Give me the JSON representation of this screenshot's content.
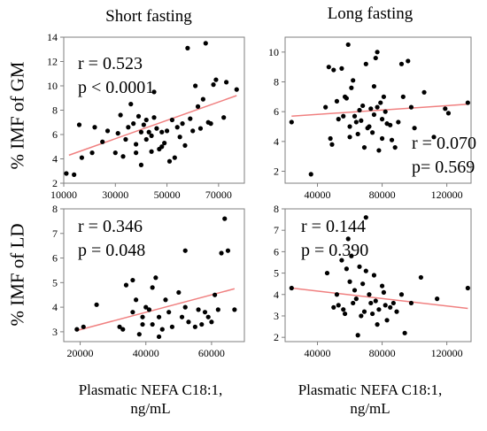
{
  "columns": [
    {
      "title": "Short fasting"
    },
    {
      "title": "Long fasting"
    }
  ],
  "rows": [
    {
      "label": "% IMF of  GM"
    },
    {
      "label": "% IMF of  LD"
    }
  ],
  "x_titles": [
    {
      "line1": "Plasmatic NEFA C18:1,",
      "line2": "ng/mL"
    },
    {
      "line1": "Plasmatic NEFA C18:1,",
      "line2": "ng/mL"
    }
  ],
  "colors": {
    "points": "#000000",
    "fit_line": "#f08080",
    "frame": "#7f7f7f"
  },
  "chart_data": [
    {
      "type": "scatter",
      "id": "gm-short",
      "xlim": [
        10000,
        80000
      ],
      "ylim": [
        2,
        14
      ],
      "xticks": [
        10000,
        30000,
        50000,
        70000
      ],
      "xtick_labels": [
        "10000",
        "30000",
        "50000",
        "70000"
      ],
      "yticks": [
        2,
        4,
        6,
        8,
        10,
        12,
        14
      ],
      "ytick_labels": [
        "2",
        "4",
        "6",
        "8",
        "10",
        "12",
        "14"
      ],
      "stats": {
        "r": "r = 0.523",
        "p": "p < 0.0001"
      },
      "fit": {
        "x": [
          12000,
          77000
        ],
        "y": [
          4.3,
          9.2
        ]
      },
      "points": [
        [
          11000,
          2.8
        ],
        [
          14000,
          2.7
        ],
        [
          17000,
          4.1
        ],
        [
          16000,
          6.8
        ],
        [
          22000,
          6.6
        ],
        [
          21000,
          4.5
        ],
        [
          25000,
          5.4
        ],
        [
          27000,
          6.3
        ],
        [
          30000,
          4.5
        ],
        [
          31000,
          6.1
        ],
        [
          32000,
          7.6
        ],
        [
          33000,
          4.2
        ],
        [
          34000,
          5.6
        ],
        [
          35000,
          6.6
        ],
        [
          36000,
          8.5
        ],
        [
          37000,
          6.9
        ],
        [
          38000,
          5.2
        ],
        [
          38000,
          4.5
        ],
        [
          39000,
          7.5
        ],
        [
          40000,
          6.2
        ],
        [
          40000,
          3.5
        ],
        [
          41000,
          6.8
        ],
        [
          42000,
          5.6
        ],
        [
          42000,
          7.2
        ],
        [
          43000,
          6.2
        ],
        [
          44000,
          4.6
        ],
        [
          44000,
          5.9
        ],
        [
          45000,
          7.4
        ],
        [
          45000,
          9.5
        ],
        [
          46000,
          6.5
        ],
        [
          47000,
          4.8
        ],
        [
          48000,
          6.2
        ],
        [
          48000,
          5.0
        ],
        [
          49000,
          5.3
        ],
        [
          50000,
          6.3
        ],
        [
          51000,
          3.8
        ],
        [
          52000,
          7.2
        ],
        [
          53000,
          4.1
        ],
        [
          54000,
          6.6
        ],
        [
          55000,
          5.8
        ],
        [
          56000,
          6.9
        ],
        [
          57000,
          5.1
        ],
        [
          58000,
          13.1
        ],
        [
          59000,
          7.3
        ],
        [
          60000,
          6.3
        ],
        [
          61000,
          10.0
        ],
        [
          62000,
          8.3
        ],
        [
          63000,
          6.5
        ],
        [
          64000,
          8.9
        ],
        [
          65000,
          13.5
        ],
        [
          66000,
          7.0
        ],
        [
          67000,
          6.9
        ],
        [
          68000,
          10.1
        ],
        [
          69000,
          10.5
        ],
        [
          72000,
          7.4
        ],
        [
          73000,
          10.3
        ],
        [
          77000,
          9.7
        ]
      ]
    },
    {
      "type": "scatter",
      "id": "gm-long",
      "xlim": [
        20000,
        135000
      ],
      "ylim": [
        1.2,
        11
      ],
      "xticks": [
        40000,
        80000,
        120000
      ],
      "xtick_labels": [
        "40000",
        "80000",
        "120000"
      ],
      "yticks": [
        2,
        4,
        6,
        8,
        10
      ],
      "ytick_labels": [
        "2",
        "4",
        "6",
        "8",
        "10"
      ],
      "stats": {
        "r": "r = 0.070",
        "p": "p= 0.569"
      },
      "fit": {
        "x": [
          24000,
          133000
        ],
        "y": [
          5.7,
          6.5
        ]
      },
      "points": [
        [
          24000,
          5.3
        ],
        [
          36000,
          1.8
        ],
        [
          45000,
          6.3
        ],
        [
          47000,
          9.0
        ],
        [
          48000,
          4.2
        ],
        [
          49000,
          3.8
        ],
        [
          50000,
          8.8
        ],
        [
          52000,
          6.7
        ],
        [
          53000,
          5.5
        ],
        [
          55000,
          8.9
        ],
        [
          56000,
          5.7
        ],
        [
          57000,
          7.0
        ],
        [
          58000,
          6.9
        ],
        [
          59000,
          10.5
        ],
        [
          60000,
          5.0
        ],
        [
          60000,
          4.3
        ],
        [
          61000,
          7.6
        ],
        [
          62000,
          8.1
        ],
        [
          63000,
          5.7
        ],
        [
          64000,
          5.3
        ],
        [
          65000,
          4.5
        ],
        [
          66000,
          6.1
        ],
        [
          67000,
          5.4
        ],
        [
          68000,
          6.4
        ],
        [
          69000,
          3.6
        ],
        [
          70000,
          9.2
        ],
        [
          71000,
          4.9
        ],
        [
          72000,
          5.0
        ],
        [
          73000,
          6.2
        ],
        [
          74000,
          4.6
        ],
        [
          75000,
          7.7
        ],
        [
          75000,
          5.8
        ],
        [
          76000,
          9.6
        ],
        [
          77000,
          6.3
        ],
        [
          77000,
          10.0
        ],
        [
          78000,
          3.4
        ],
        [
          79000,
          6.6
        ],
        [
          80000,
          5.5
        ],
        [
          80000,
          4.2
        ],
        [
          81000,
          7.0
        ],
        [
          82000,
          6.0
        ],
        [
          83000,
          5.2
        ],
        [
          85000,
          5.1
        ],
        [
          86000,
          4.1
        ],
        [
          88000,
          3.6
        ],
        [
          90000,
          5.3
        ],
        [
          92000,
          9.2
        ],
        [
          93000,
          7.0
        ],
        [
          96000,
          9.4
        ],
        [
          98000,
          6.3
        ],
        [
          100000,
          4.9
        ],
        [
          106000,
          7.3
        ],
        [
          112000,
          4.3
        ],
        [
          119000,
          6.2
        ],
        [
          121000,
          5.9
        ],
        [
          133000,
          6.6
        ]
      ]
    },
    {
      "type": "scatter",
      "id": "ld-short",
      "xlim": [
        15000,
        70000
      ],
      "ylim": [
        2.6,
        8
      ],
      "xticks": [
        20000,
        40000,
        60000
      ],
      "xtick_labels": [
        "20000",
        "40000",
        "60000"
      ],
      "yticks": [
        3,
        4,
        5,
        6,
        7,
        8
      ],
      "ytick_labels": [
        "3",
        "4",
        "5",
        "6",
        "7",
        "8"
      ],
      "stats": {
        "r": "r = 0.346",
        "p": "p = 0.048"
      },
      "fit": {
        "x": [
          19000,
          67000
        ],
        "y": [
          3.05,
          4.75
        ]
      },
      "points": [
        [
          19000,
          3.1
        ],
        [
          21000,
          3.2
        ],
        [
          25000,
          4.1
        ],
        [
          32000,
          3.2
        ],
        [
          33000,
          3.1
        ],
        [
          34000,
          4.9
        ],
        [
          36000,
          5.1
        ],
        [
          36000,
          3.8
        ],
        [
          37000,
          4.3
        ],
        [
          38000,
          2.9
        ],
        [
          39000,
          3.6
        ],
        [
          39000,
          3.3
        ],
        [
          40000,
          4.0
        ],
        [
          41000,
          3.9
        ],
        [
          42000,
          3.3
        ],
        [
          42000,
          4.8
        ],
        [
          43000,
          5.2
        ],
        [
          44000,
          3.6
        ],
        [
          44000,
          2.8
        ],
        [
          45000,
          3.1
        ],
        [
          46000,
          4.3
        ],
        [
          47000,
          3.8
        ],
        [
          48000,
          3.2
        ],
        [
          50000,
          4.6
        ],
        [
          51000,
          3.6
        ],
        [
          52000,
          4.0
        ],
        [
          53000,
          3.4
        ],
        [
          55000,
          3.2
        ],
        [
          56000,
          3.9
        ],
        [
          57000,
          3.3
        ],
        [
          58000,
          3.8
        ],
        [
          59000,
          3.6
        ],
        [
          60000,
          3.4
        ],
        [
          61000,
          4.5
        ],
        [
          62000,
          3.9
        ],
        [
          63000,
          6.2
        ],
        [
          64000,
          7.6
        ],
        [
          65000,
          6.3
        ],
        [
          67000,
          3.9
        ],
        [
          52000,
          6.3
        ]
      ]
    },
    {
      "type": "scatter",
      "id": "ld-long",
      "xlim": [
        20000,
        135000
      ],
      "ylim": [
        1.8,
        8
      ],
      "xticks": [
        40000,
        80000,
        120000
      ],
      "xtick_labels": [
        "40000",
        "80000",
        "120000"
      ],
      "yticks": [
        2,
        3,
        4,
        5,
        6,
        7,
        8
      ],
      "ytick_labels": [
        "2",
        "3",
        "4",
        "5",
        "6",
        "7",
        "8"
      ],
      "stats": {
        "r": "r = 0.144",
        "p": "p = 0.390"
      },
      "fit": {
        "x": [
          24000,
          133000
        ],
        "y": [
          4.3,
          3.35
        ]
      },
      "points": [
        [
          24000,
          4.3
        ],
        [
          46000,
          5.0
        ],
        [
          50000,
          3.4
        ],
        [
          52000,
          4.0
        ],
        [
          53000,
          3.5
        ],
        [
          55000,
          5.6
        ],
        [
          56000,
          3.3
        ],
        [
          57000,
          3.1
        ],
        [
          58000,
          5.2
        ],
        [
          59000,
          6.6
        ],
        [
          60000,
          4.6
        ],
        [
          61000,
          5.8
        ],
        [
          62000,
          3.6
        ],
        [
          63000,
          4.2
        ],
        [
          64000,
          3.8
        ],
        [
          65000,
          2.1
        ],
        [
          66000,
          5.3
        ],
        [
          67000,
          3.0
        ],
        [
          68000,
          4.5
        ],
        [
          69000,
          3.2
        ],
        [
          70000,
          5.1
        ],
        [
          70000,
          7.6
        ],
        [
          72000,
          4.0
        ],
        [
          73000,
          3.6
        ],
        [
          74000,
          3.1
        ],
        [
          75000,
          4.9
        ],
        [
          76000,
          3.7
        ],
        [
          77000,
          2.6
        ],
        [
          78000,
          3.3
        ],
        [
          80000,
          4.4
        ],
        [
          81000,
          4.1
        ],
        [
          82000,
          3.5
        ],
        [
          83000,
          2.8
        ],
        [
          85000,
          3.4
        ],
        [
          87000,
          3.6
        ],
        [
          89000,
          3.2
        ],
        [
          92000,
          4.0
        ],
        [
          94000,
          2.2
        ],
        [
          98000,
          3.6
        ],
        [
          104000,
          4.8
        ],
        [
          114000,
          3.8
        ],
        [
          133000,
          4.3
        ]
      ]
    }
  ]
}
